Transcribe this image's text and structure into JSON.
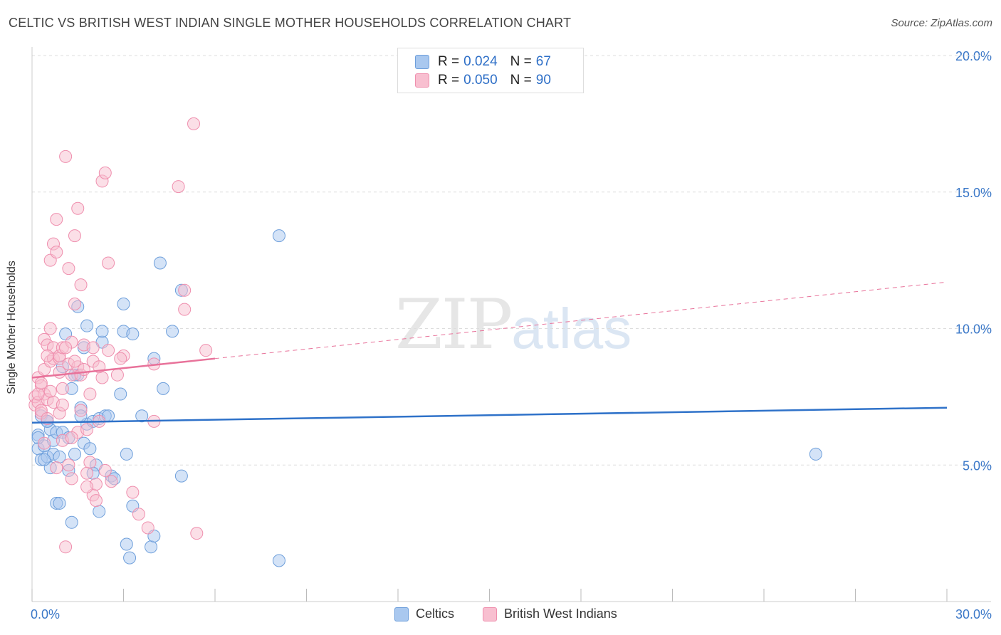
{
  "header": {
    "title": "CELTIC VS BRITISH WEST INDIAN SINGLE MOTHER HOUSEHOLDS CORRELATION CHART",
    "source": "Source: ZipAtlas.com"
  },
  "watermark": {
    "zip": "ZIP",
    "atlas": "atlas"
  },
  "legend": {
    "r_label": "R =",
    "n_label": "N =",
    "series": [
      {
        "name": "Celtics",
        "r": "0.024",
        "n": "67",
        "fill": "#a9c8ef",
        "stroke": "#6e9fdb"
      },
      {
        "name": "British West Indians",
        "r": "0.050",
        "n": "90",
        "fill": "#f8bfd0",
        "stroke": "#ef8fae"
      }
    ]
  },
  "colors": {
    "blue_line": "#2f72c9",
    "pink_line": "#e8729a",
    "axis_text": "#3b78c8",
    "grid": "#dddddd"
  },
  "chart_data": {
    "type": "scatter",
    "title": "CELTIC VS BRITISH WEST INDIAN SINGLE MOTHER HOUSEHOLDS CORRELATION CHART",
    "xlabel": "",
    "ylabel": "Single Mother Households",
    "xlim": [
      0,
      30
    ],
    "ylim": [
      0,
      20
    ],
    "x_tick_labels": [
      "0.0%",
      "30.0%"
    ],
    "y_ticks": [
      5,
      10,
      15,
      20
    ],
    "y_tick_labels": [
      "5.0%",
      "10.0%",
      "15.0%",
      "20.0%"
    ],
    "grid": true,
    "series": [
      {
        "name": "Celtics",
        "points": [
          [
            0.2,
            6.1
          ],
          [
            0.2,
            5.6
          ],
          [
            0.3,
            5.2
          ],
          [
            0.3,
            6.8
          ],
          [
            0.4,
            5.7
          ],
          [
            0.5,
            6.6
          ],
          [
            0.5,
            5.3
          ],
          [
            0.6,
            4.9
          ],
          [
            0.6,
            6.3
          ],
          [
            0.7,
            5.9
          ],
          [
            0.7,
            5.4
          ],
          [
            0.8,
            6.2
          ],
          [
            0.8,
            3.6
          ],
          [
            0.9,
            3.6
          ],
          [
            1.0,
            6.2
          ],
          [
            1.0,
            8.6
          ],
          [
            1.1,
            9.8
          ],
          [
            1.2,
            4.8
          ],
          [
            1.2,
            6.0
          ],
          [
            1.3,
            2.9
          ],
          [
            1.3,
            7.8
          ],
          [
            1.4,
            5.4
          ],
          [
            1.5,
            8.3
          ],
          [
            1.5,
            10.8
          ],
          [
            1.6,
            7.1
          ],
          [
            1.7,
            9.3
          ],
          [
            1.7,
            5.8
          ],
          [
            1.8,
            6.5
          ],
          [
            1.8,
            10.1
          ],
          [
            1.9,
            5.6
          ],
          [
            2.0,
            6.6
          ],
          [
            2.1,
            5.0
          ],
          [
            2.2,
            3.3
          ],
          [
            2.2,
            6.7
          ],
          [
            2.3,
            9.5
          ],
          [
            2.3,
            9.9
          ],
          [
            2.4,
            6.8
          ],
          [
            2.6,
            4.6
          ],
          [
            2.7,
            4.5
          ],
          [
            2.9,
            7.6
          ],
          [
            3.0,
            10.9
          ],
          [
            3.0,
            9.9
          ],
          [
            3.1,
            2.1
          ],
          [
            3.1,
            5.4
          ],
          [
            3.2,
            1.6
          ],
          [
            3.3,
            3.5
          ],
          [
            3.3,
            9.8
          ],
          [
            3.6,
            6.8
          ],
          [
            3.9,
            2.0
          ],
          [
            4.0,
            2.4
          ],
          [
            4.0,
            8.9
          ],
          [
            4.2,
            12.4
          ],
          [
            4.3,
            7.8
          ],
          [
            4.6,
            9.9
          ],
          [
            4.9,
            11.4
          ],
          [
            4.9,
            4.6
          ],
          [
            8.1,
            13.4
          ],
          [
            8.1,
            1.5
          ],
          [
            25.7,
            5.4
          ],
          [
            0.4,
            5.2
          ],
          [
            0.9,
            5.3
          ],
          [
            1.6,
            6.8
          ],
          [
            2.0,
            4.7
          ],
          [
            0.5,
            6.6
          ],
          [
            2.5,
            6.8
          ],
          [
            1.4,
            8.3
          ],
          [
            0.2,
            6.0
          ]
        ]
      },
      {
        "name": "British West Indians",
        "points": [
          [
            0.1,
            7.2
          ],
          [
            0.1,
            7.5
          ],
          [
            0.2,
            7.3
          ],
          [
            0.2,
            8.2
          ],
          [
            0.3,
            7.9
          ],
          [
            0.3,
            6.9
          ],
          [
            0.3,
            7.0
          ],
          [
            0.4,
            7.6
          ],
          [
            0.4,
            8.5
          ],
          [
            0.4,
            9.6
          ],
          [
            0.5,
            7.4
          ],
          [
            0.5,
            6.7
          ],
          [
            0.5,
            9.4
          ],
          [
            0.6,
            8.8
          ],
          [
            0.6,
            12.5
          ],
          [
            0.6,
            10.0
          ],
          [
            0.7,
            8.9
          ],
          [
            0.7,
            9.3
          ],
          [
            0.7,
            13.1
          ],
          [
            0.8,
            14.0
          ],
          [
            0.8,
            12.8
          ],
          [
            0.8,
            4.9
          ],
          [
            0.9,
            8.9
          ],
          [
            0.9,
            9.0
          ],
          [
            0.9,
            6.9
          ],
          [
            1.0,
            9.3
          ],
          [
            1.0,
            7.8
          ],
          [
            1.0,
            5.9
          ],
          [
            1.1,
            16.3
          ],
          [
            1.1,
            2.0
          ],
          [
            1.2,
            12.2
          ],
          [
            1.2,
            8.7
          ],
          [
            1.2,
            5.0
          ],
          [
            1.3,
            9.5
          ],
          [
            1.3,
            8.3
          ],
          [
            1.3,
            4.5
          ],
          [
            1.4,
            13.4
          ],
          [
            1.4,
            10.9
          ],
          [
            1.5,
            14.4
          ],
          [
            1.5,
            8.6
          ],
          [
            1.5,
            6.2
          ],
          [
            1.6,
            11.6
          ],
          [
            1.6,
            8.3
          ],
          [
            1.6,
            7.0
          ],
          [
            1.7,
            9.4
          ],
          [
            1.8,
            6.3
          ],
          [
            1.8,
            4.7
          ],
          [
            1.9,
            5.1
          ],
          [
            1.9,
            7.6
          ],
          [
            2.0,
            3.9
          ],
          [
            2.0,
            8.8
          ],
          [
            2.1,
            3.7
          ],
          [
            2.1,
            4.3
          ],
          [
            2.2,
            6.6
          ],
          [
            2.3,
            8.2
          ],
          [
            2.3,
            15.4
          ],
          [
            2.4,
            15.7
          ],
          [
            2.5,
            12.4
          ],
          [
            2.6,
            4.4
          ],
          [
            2.8,
            8.3
          ],
          [
            3.0,
            9.0
          ],
          [
            3.3,
            4.0
          ],
          [
            3.5,
            3.2
          ],
          [
            3.8,
            2.7
          ],
          [
            4.0,
            6.6
          ],
          [
            4.0,
            8.7
          ],
          [
            4.8,
            15.2
          ],
          [
            5.0,
            11.4
          ],
          [
            5.0,
            10.7
          ],
          [
            5.3,
            17.5
          ],
          [
            5.4,
            2.5
          ],
          [
            5.7,
            9.2
          ],
          [
            0.2,
            7.6
          ],
          [
            0.3,
            8.0
          ],
          [
            0.4,
            5.8
          ],
          [
            0.6,
            7.7
          ],
          [
            0.7,
            7.3
          ],
          [
            0.9,
            8.4
          ],
          [
            1.1,
            9.3
          ],
          [
            1.4,
            8.8
          ],
          [
            1.7,
            8.5
          ],
          [
            2.0,
            9.3
          ],
          [
            2.2,
            8.6
          ],
          [
            2.5,
            9.2
          ],
          [
            2.9,
            8.9
          ],
          [
            1.0,
            7.2
          ],
          [
            0.5,
            9.0
          ],
          [
            1.8,
            4.2
          ],
          [
            2.4,
            4.8
          ],
          [
            1.3,
            6.0
          ]
        ]
      }
    ],
    "trend_lines": [
      {
        "series": "Celtics",
        "style": "solid",
        "x": [
          0,
          30
        ],
        "y": [
          6.55,
          7.1
        ]
      },
      {
        "series": "British West Indians",
        "style": "solid",
        "x": [
          0,
          6
        ],
        "y": [
          8.2,
          8.9
        ]
      },
      {
        "series": "British West Indians",
        "style": "dashed",
        "x": [
          6,
          30
        ],
        "y": [
          8.9,
          11.7
        ]
      }
    ]
  }
}
